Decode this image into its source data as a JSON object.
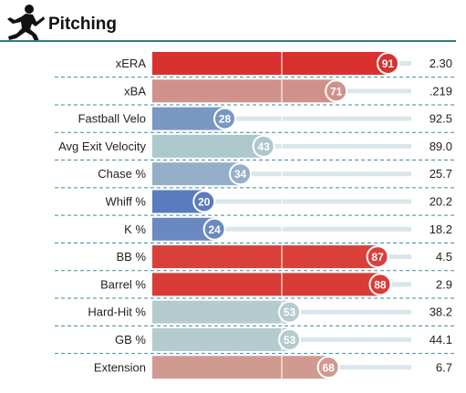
{
  "header": {
    "title": "Pitching"
  },
  "chart_data": {
    "type": "bar",
    "orientation": "horizontal",
    "value_kind": "percentile",
    "xlim": [
      0,
      100
    ],
    "rows": [
      {
        "label": "xERA",
        "percentile": 91,
        "value": "2.30",
        "color": "#d8312e"
      },
      {
        "label": "xBA",
        "percentile": 71,
        "value": ".219",
        "color": "#cf928a"
      },
      {
        "label": "Fastball Velo",
        "percentile": 28,
        "value": "92.5",
        "color": "#7897c3"
      },
      {
        "label": "Avg Exit Velocity",
        "percentile": 43,
        "value": "89.0",
        "color": "#adc8cc"
      },
      {
        "label": "Chase %",
        "percentile": 34,
        "value": "25.7",
        "color": "#95afcb"
      },
      {
        "label": "Whiff %",
        "percentile": 20,
        "value": "20.2",
        "color": "#5a7bbd"
      },
      {
        "label": "K %",
        "percentile": 24,
        "value": "18.2",
        "color": "#6b89c1"
      },
      {
        "label": "BB %",
        "percentile": 87,
        "value": "4.5",
        "color": "#d9403a"
      },
      {
        "label": "Barrel %",
        "percentile": 88,
        "value": "2.9",
        "color": "#d93b36"
      },
      {
        "label": "Hard-Hit %",
        "percentile": 53,
        "value": "38.2",
        "color": "#b5cccf"
      },
      {
        "label": "GB %",
        "percentile": 53,
        "value": "44.1",
        "color": "#b5cccf"
      },
      {
        "label": "Extension",
        "percentile": 68,
        "value": "6.7",
        "color": "#d19a90"
      }
    ]
  },
  "colors": {
    "track": "#d9e7eb",
    "header_rule": "#2f7f7a",
    "row_divider": "#3a8d9a"
  },
  "icons": {
    "header": "pitcher-icon"
  }
}
